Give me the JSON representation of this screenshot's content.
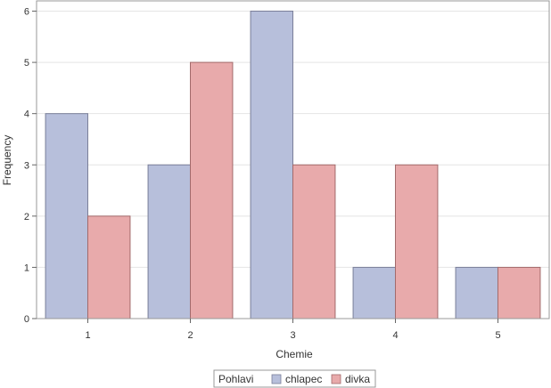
{
  "chart_data": {
    "type": "bar",
    "title": "",
    "xlabel": "Chemie",
    "ylabel": "Frequency",
    "categories": [
      "1",
      "2",
      "3",
      "4",
      "5"
    ],
    "series": [
      {
        "name": "chlapec",
        "values": [
          4,
          3,
          6,
          1,
          1
        ],
        "color": "#b7bfdb"
      },
      {
        "name": "divka",
        "values": [
          2,
          5,
          3,
          3,
          1
        ],
        "color": "#e8aaab"
      }
    ],
    "ylim": [
      0,
      6.2
    ],
    "yticks": [
      "0",
      "1",
      "2",
      "3",
      "4",
      "5",
      "6"
    ],
    "grid": true,
    "legend": {
      "title": "Pohlavi",
      "placement": "bottom-center"
    }
  }
}
